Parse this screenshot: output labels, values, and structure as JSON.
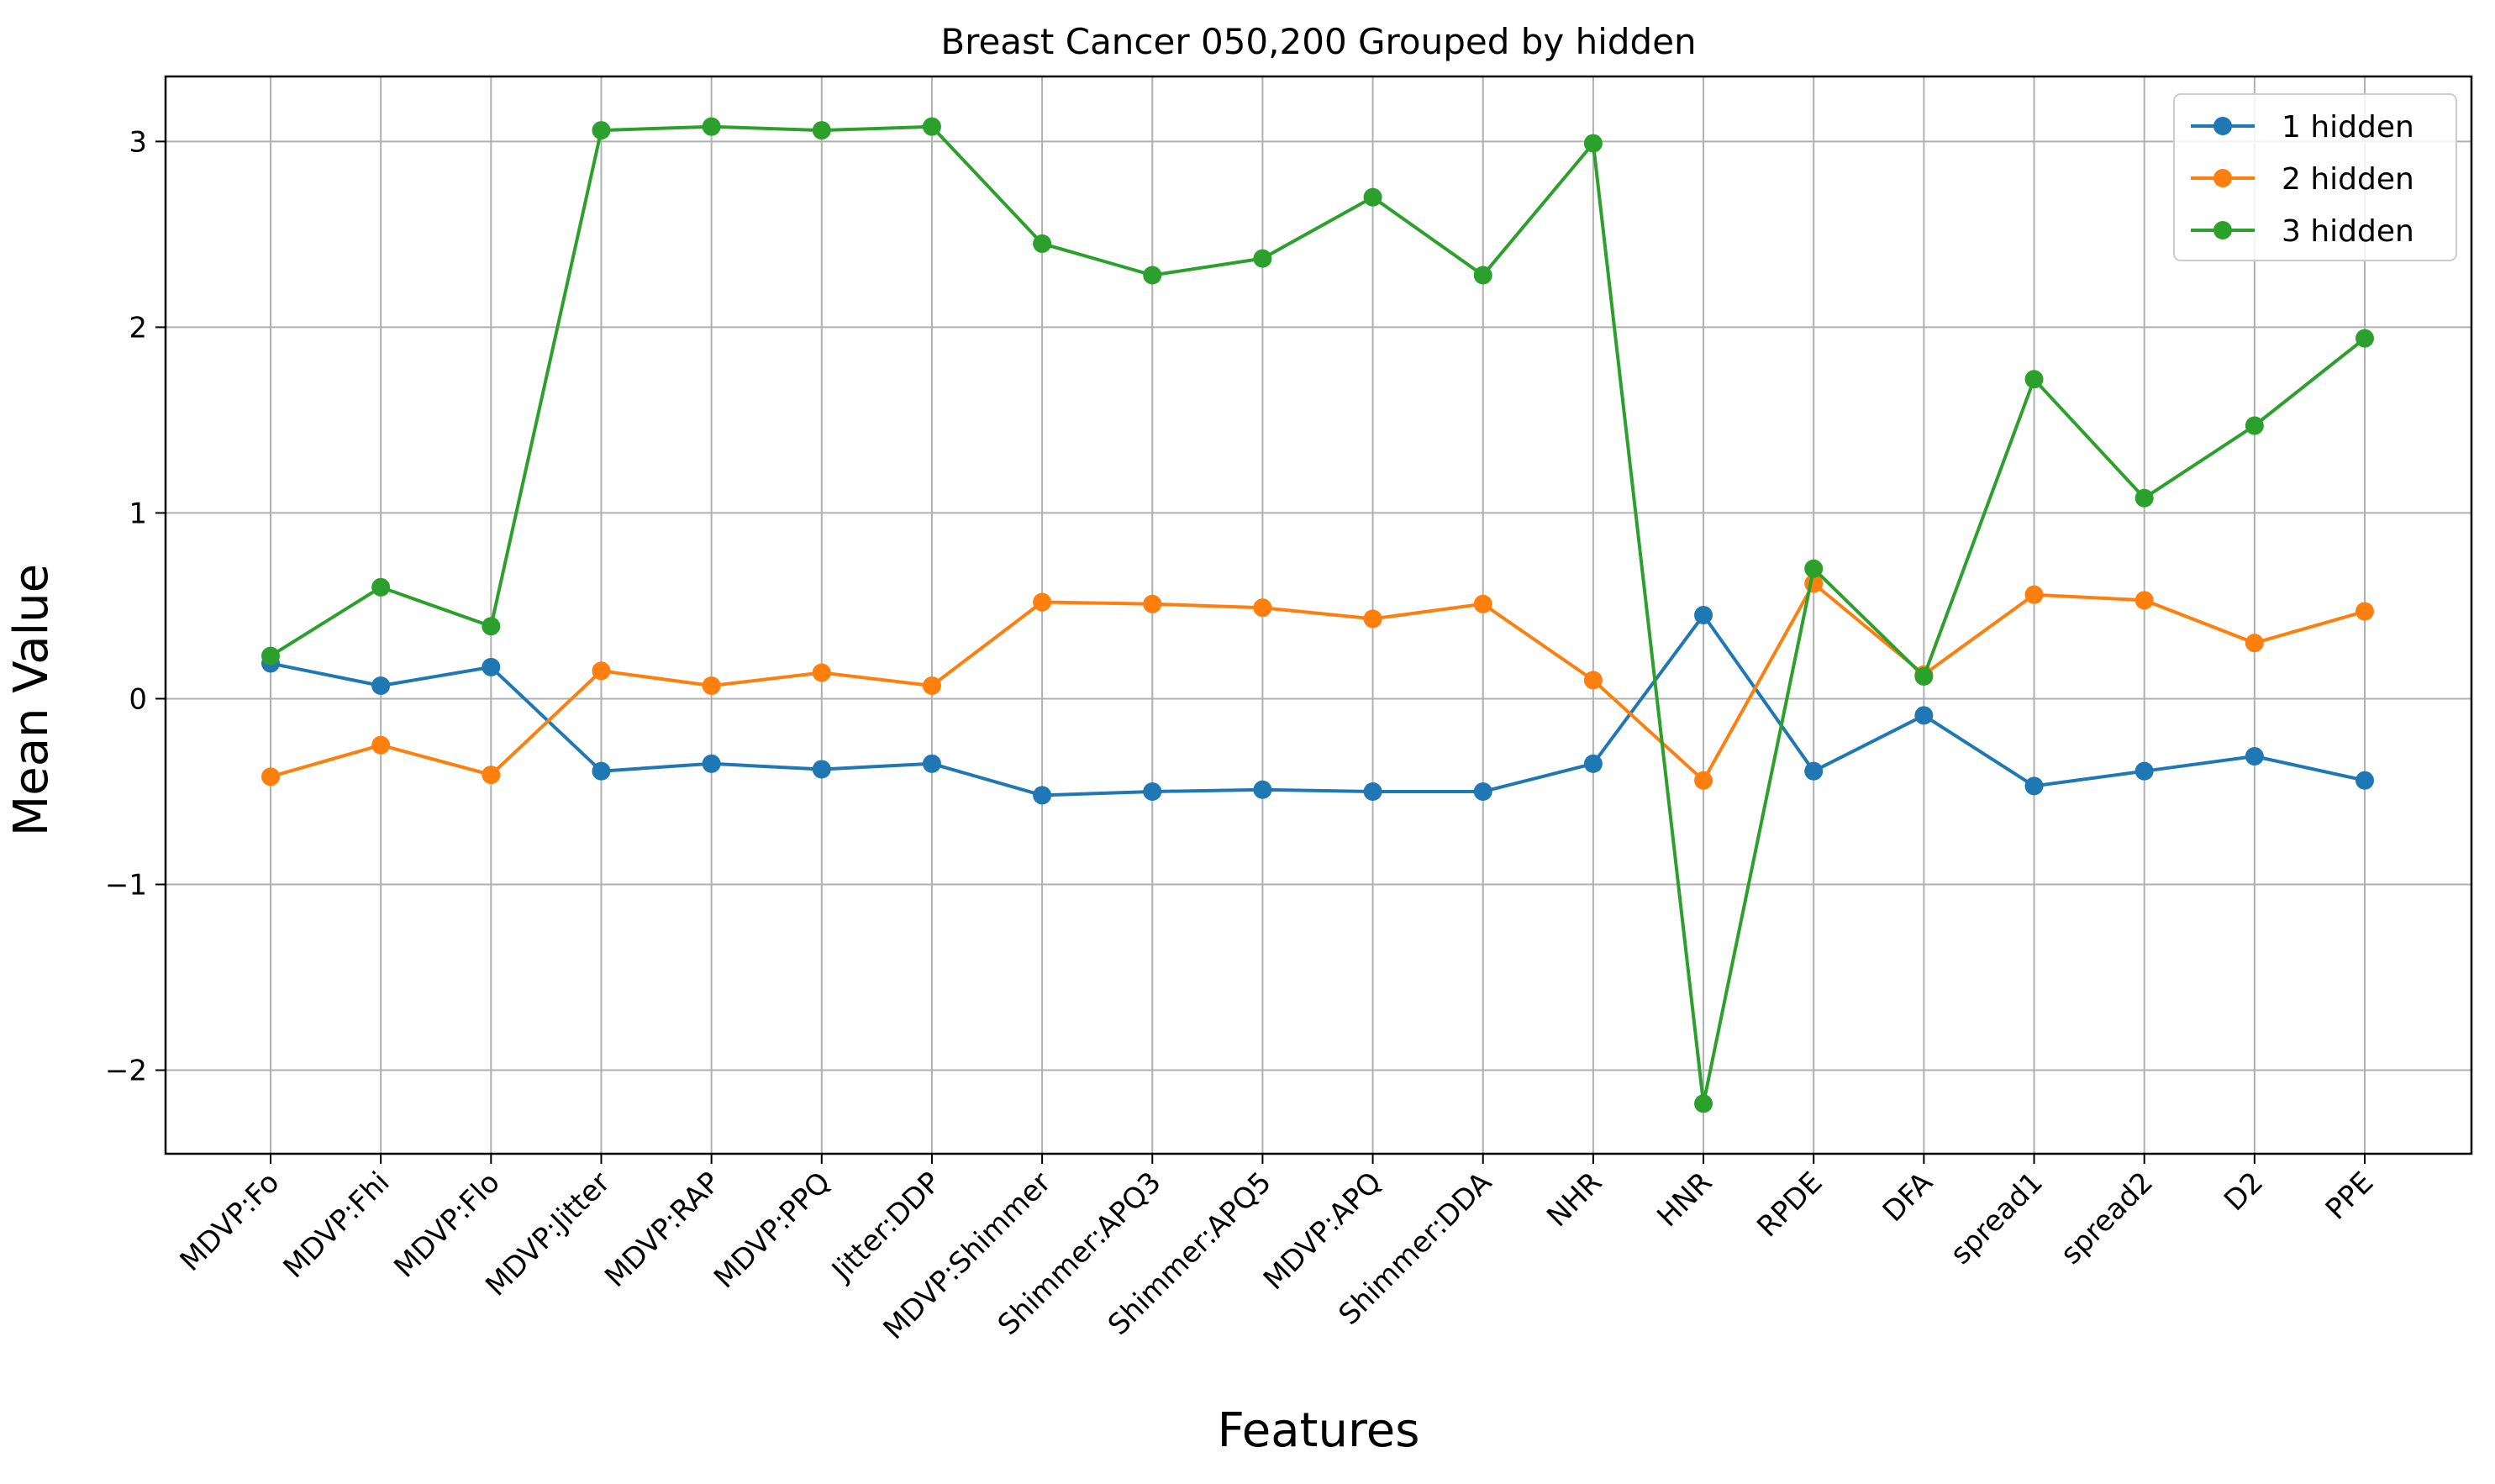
{
  "chart_data": {
    "type": "line",
    "title": "Breast Cancer 050,200 Grouped by hidden",
    "xlabel": "Features",
    "ylabel": "Mean Value",
    "categories": [
      "MDVP:Fo",
      "MDVP:Fhi",
      "MDVP:Flo",
      "MDVP:Jitter",
      "MDVP:RAP",
      "MDVP:PPQ",
      "Jitter:DDP",
      "MDVP:Shimmer",
      "Shimmer:APQ3",
      "Shimmer:APQ5",
      "MDVP:APQ",
      "Shimmer:DDA",
      "NHR",
      "HNR",
      "RPDE",
      "DFA",
      "spread1",
      "spread2",
      "D2",
      "PPE"
    ],
    "ylim": [
      -2.45,
      3.35
    ],
    "yticks": [
      -2,
      -1,
      0,
      1,
      2,
      3
    ],
    "ytick_labels": [
      "−2",
      "−1",
      "0",
      "1",
      "2",
      "3"
    ],
    "grid": true,
    "legend_position": "top-right",
    "series": [
      {
        "name": "1 hidden",
        "color": "#1f77b4",
        "values": [
          0.19,
          0.07,
          0.17,
          -0.39,
          -0.35,
          -0.38,
          -0.35,
          -0.52,
          -0.5,
          -0.49,
          -0.5,
          -0.5,
          -0.35,
          0.45,
          -0.39,
          -0.09,
          -0.47,
          -0.39,
          -0.31,
          -0.44
        ]
      },
      {
        "name": "2 hidden",
        "color": "#ff7f0e",
        "values": [
          -0.42,
          -0.25,
          -0.41,
          0.15,
          0.07,
          0.14,
          0.07,
          0.52,
          0.51,
          0.49,
          0.43,
          0.51,
          0.1,
          -0.44,
          0.62,
          0.13,
          0.56,
          0.53,
          0.3,
          0.47
        ]
      },
      {
        "name": "3 hidden",
        "color": "#2ca02c",
        "values": [
          0.23,
          0.6,
          0.39,
          3.06,
          3.08,
          3.06,
          3.08,
          2.45,
          2.28,
          2.37,
          2.7,
          2.28,
          2.99,
          -2.18,
          0.7,
          0.12,
          1.72,
          1.08,
          1.47,
          1.94
        ]
      }
    ]
  }
}
